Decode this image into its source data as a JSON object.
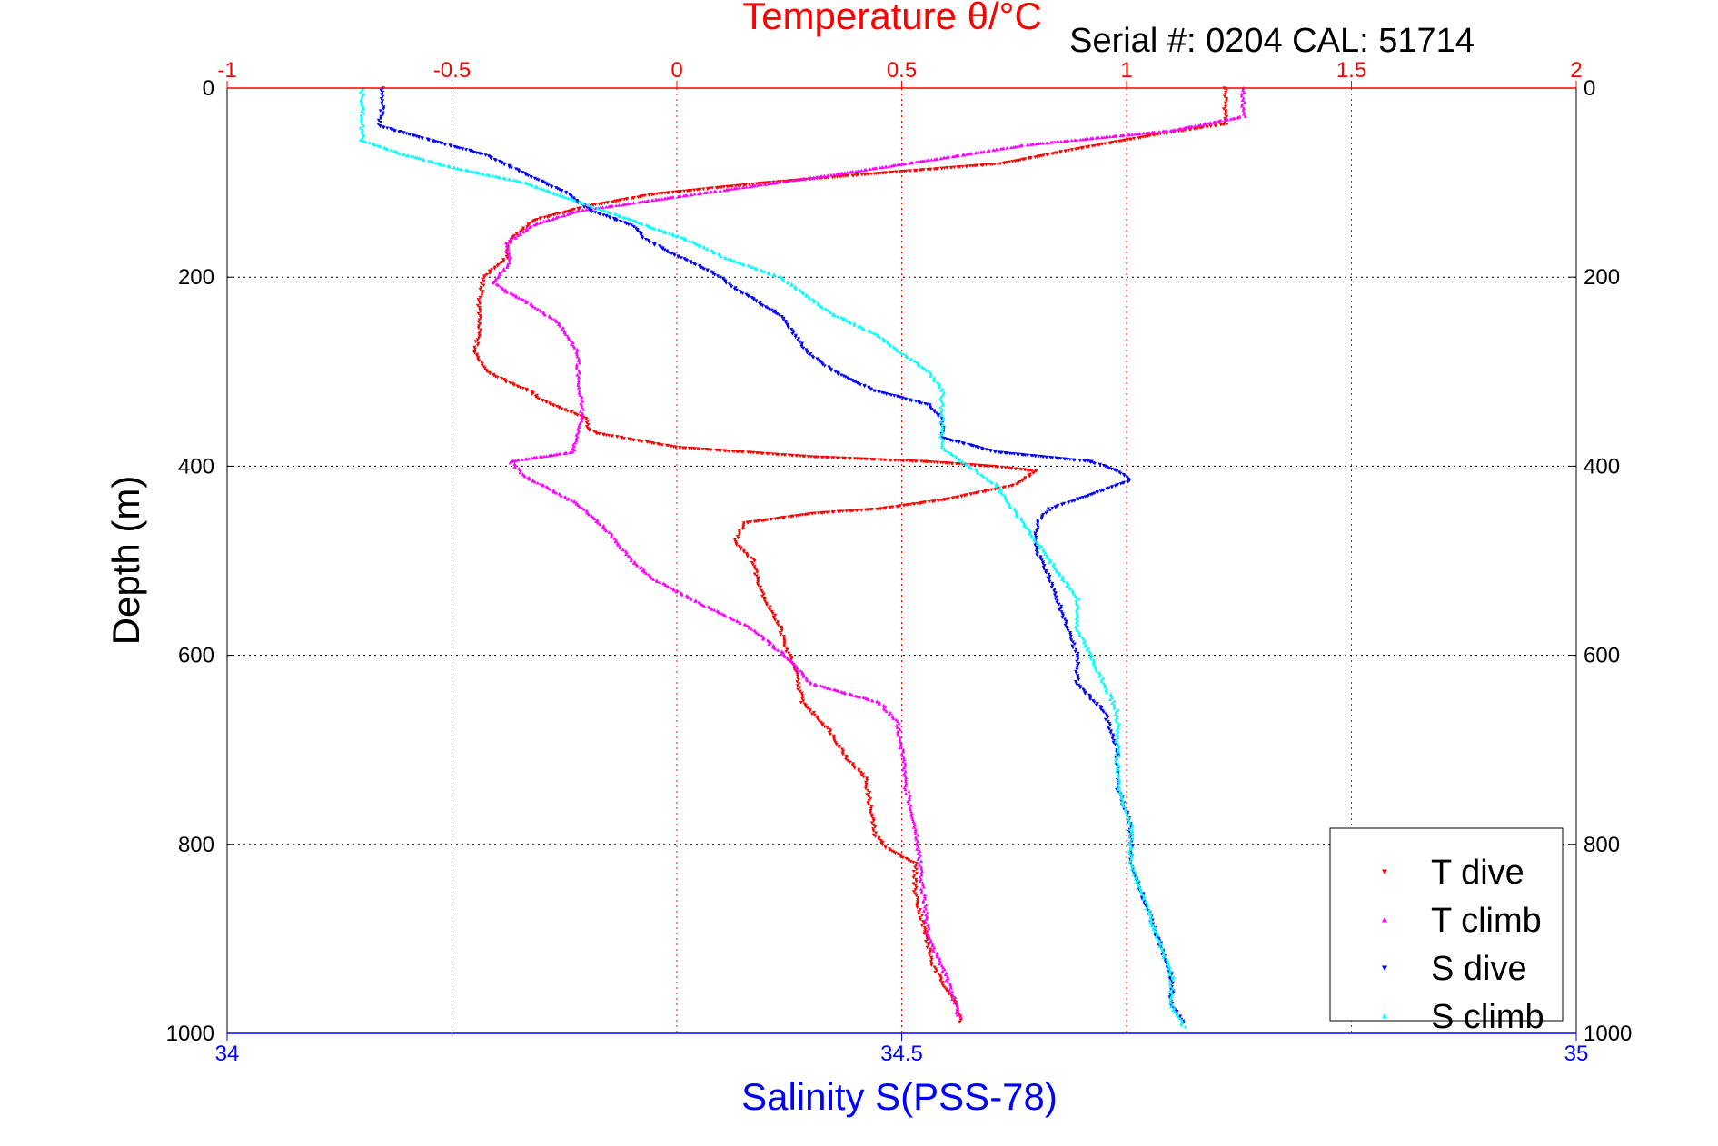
{
  "chart_data": {
    "type": "scatter",
    "title": "Temperature θ/°C",
    "annotation": "Serial #: 0204  CAL: 51714",
    "ylabel": "Depth (m)",
    "xlabel_bottom": "Salinity S(PSS-78)",
    "xlabel_top": "Temperature θ/°C",
    "ylim": [
      1000,
      0
    ],
    "y_reversed": true,
    "top_axis": {
      "range": [
        -1,
        2
      ],
      "ticks": [
        -1,
        -0.5,
        0,
        0.5,
        1,
        1.5,
        2
      ],
      "tick_labels": [
        "-1",
        "-0.5",
        "0",
        "0.5",
        "1",
        "1.5",
        "2"
      ],
      "color": "#ff0000",
      "grid": true
    },
    "bottom_axis": {
      "range": [
        34,
        35
      ],
      "ticks": [
        34,
        34.5,
        35
      ],
      "tick_labels": [
        "34",
        "34.5",
        "35"
      ],
      "color": "#0000ff"
    },
    "left_axis": {
      "ticks": [
        0,
        200,
        400,
        600,
        800,
        1000
      ],
      "tick_labels": [
        "0",
        "200",
        "400",
        "600",
        "800",
        "1000"
      ],
      "grid": true
    },
    "right_axis": {
      "ticks": [
        0,
        200,
        400,
        600,
        800,
        1000
      ],
      "tick_labels": [
        "0",
        "200",
        "400",
        "600",
        "800",
        "1000"
      ]
    },
    "legend": {
      "placement": "bottom-right",
      "entries": [
        "T dive",
        "T climb",
        "S dive",
        "S climb"
      ]
    },
    "series": [
      {
        "name": "T dive",
        "axis": "temperature",
        "color": "#ff0000",
        "marker": "triangle-down",
        "points": [
          [
            1.22,
            0
          ],
          [
            1.22,
            20
          ],
          [
            1.22,
            38
          ],
          [
            1.08,
            48
          ],
          [
            0.88,
            65
          ],
          [
            0.72,
            80
          ],
          [
            0.45,
            90
          ],
          [
            0.2,
            100
          ],
          [
            -0.05,
            112
          ],
          [
            -0.2,
            125
          ],
          [
            -0.32,
            140
          ],
          [
            -0.37,
            160
          ],
          [
            -0.38,
            180
          ],
          [
            -0.43,
            200
          ],
          [
            -0.44,
            230
          ],
          [
            -0.44,
            260
          ],
          [
            -0.45,
            280
          ],
          [
            -0.42,
            300
          ],
          [
            -0.38,
            310
          ],
          [
            -0.33,
            320
          ],
          [
            -0.3,
            330
          ],
          [
            -0.25,
            340
          ],
          [
            -0.2,
            350
          ],
          [
            -0.2,
            360
          ],
          [
            -0.18,
            365
          ],
          [
            0.0,
            380
          ],
          [
            0.3,
            390
          ],
          [
            0.55,
            395
          ],
          [
            0.7,
            400
          ],
          [
            0.8,
            405
          ],
          [
            0.75,
            420
          ],
          [
            0.6,
            435
          ],
          [
            0.45,
            445
          ],
          [
            0.3,
            450
          ],
          [
            0.15,
            460
          ],
          [
            0.13,
            480
          ],
          [
            0.17,
            500
          ],
          [
            0.18,
            520
          ],
          [
            0.2,
            545
          ],
          [
            0.23,
            570
          ],
          [
            0.24,
            590
          ],
          [
            0.26,
            610
          ],
          [
            0.27,
            630
          ],
          [
            0.28,
            650
          ],
          [
            0.34,
            680
          ],
          [
            0.38,
            710
          ],
          [
            0.42,
            730
          ],
          [
            0.43,
            760
          ],
          [
            0.44,
            790
          ],
          [
            0.47,
            805
          ],
          [
            0.53,
            820
          ],
          [
            0.53,
            850
          ],
          [
            0.55,
            890
          ],
          [
            0.57,
            930
          ],
          [
            0.61,
            960
          ],
          [
            0.63,
            980
          ],
          [
            0.63,
            990
          ]
        ]
      },
      {
        "name": "T climb",
        "axis": "temperature",
        "color": "#ff00ff",
        "marker": "triangle-up",
        "points": [
          [
            1.26,
            0
          ],
          [
            1.26,
            15
          ],
          [
            1.26,
            30
          ],
          [
            1.1,
            45
          ],
          [
            0.78,
            60
          ],
          [
            0.58,
            75
          ],
          [
            0.3,
            95
          ],
          [
            0.0,
            115
          ],
          [
            -0.22,
            130
          ],
          [
            -0.32,
            145
          ],
          [
            -0.38,
            165
          ],
          [
            -0.37,
            185
          ],
          [
            -0.41,
            205
          ],
          [
            -0.38,
            215
          ],
          [
            -0.32,
            230
          ],
          [
            -0.26,
            250
          ],
          [
            -0.22,
            280
          ],
          [
            -0.22,
            310
          ],
          [
            -0.21,
            340
          ],
          [
            -0.22,
            365
          ],
          [
            -0.23,
            385
          ],
          [
            -0.37,
            395
          ],
          [
            -0.34,
            410
          ],
          [
            -0.22,
            440
          ],
          [
            -0.15,
            470
          ],
          [
            -0.1,
            500
          ],
          [
            -0.05,
            520
          ],
          [
            0.05,
            545
          ],
          [
            0.16,
            570
          ],
          [
            0.24,
            600
          ],
          [
            0.3,
            630
          ],
          [
            0.45,
            650
          ],
          [
            0.49,
            670
          ],
          [
            0.5,
            700
          ],
          [
            0.51,
            740
          ],
          [
            0.53,
            780
          ],
          [
            0.54,
            820
          ],
          [
            0.55,
            860
          ],
          [
            0.56,
            900
          ],
          [
            0.6,
            940
          ],
          [
            0.62,
            970
          ],
          [
            0.63,
            985
          ]
        ]
      },
      {
        "name": "S dive",
        "axis": "salinity",
        "color": "#0000ff",
        "marker": "triangle-down",
        "points": [
          [
            34.115,
            0
          ],
          [
            34.115,
            20
          ],
          [
            34.113,
            40
          ],
          [
            34.15,
            55
          ],
          [
            34.19,
            70
          ],
          [
            34.22,
            90
          ],
          [
            34.25,
            110
          ],
          [
            34.27,
            130
          ],
          [
            34.3,
            145
          ],
          [
            34.31,
            160
          ],
          [
            34.33,
            175
          ],
          [
            34.36,
            195
          ],
          [
            34.38,
            215
          ],
          [
            34.41,
            240
          ],
          [
            34.42,
            260
          ],
          [
            34.43,
            280
          ],
          [
            34.45,
            300
          ],
          [
            34.48,
            320
          ],
          [
            34.52,
            335
          ],
          [
            34.53,
            350
          ],
          [
            34.53,
            370
          ],
          [
            34.57,
            385
          ],
          [
            34.64,
            395
          ],
          [
            34.66,
            405
          ],
          [
            34.67,
            415
          ],
          [
            34.64,
            430
          ],
          [
            34.61,
            445
          ],
          [
            34.6,
            460
          ],
          [
            34.6,
            490
          ],
          [
            34.61,
            520
          ],
          [
            34.62,
            560
          ],
          [
            34.63,
            600
          ],
          [
            34.63,
            630
          ],
          [
            34.65,
            660
          ],
          [
            34.66,
            700
          ],
          [
            34.66,
            740
          ],
          [
            34.67,
            780
          ],
          [
            34.67,
            820
          ],
          [
            34.68,
            860
          ],
          [
            34.69,
            900
          ],
          [
            34.7,
            940
          ],
          [
            34.7,
            970
          ],
          [
            34.71,
            990
          ]
        ]
      },
      {
        "name": "S climb",
        "axis": "salinity",
        "color": "#00ffff",
        "marker": "triangle-up",
        "points": [
          [
            34.1,
            0
          ],
          [
            34.1,
            20
          ],
          [
            34.1,
            40
          ],
          [
            34.1,
            55
          ],
          [
            34.13,
            70
          ],
          [
            34.17,
            85
          ],
          [
            34.22,
            100
          ],
          [
            34.26,
            120
          ],
          [
            34.3,
            140
          ],
          [
            34.34,
            160
          ],
          [
            34.37,
            180
          ],
          [
            34.41,
            200
          ],
          [
            34.43,
            220
          ],
          [
            34.45,
            240
          ],
          [
            34.48,
            260
          ],
          [
            34.5,
            280
          ],
          [
            34.52,
            300
          ],
          [
            34.53,
            320
          ],
          [
            34.53,
            340
          ],
          [
            34.53,
            360
          ],
          [
            34.53,
            380
          ],
          [
            34.55,
            400
          ],
          [
            34.57,
            420
          ],
          [
            34.58,
            440
          ],
          [
            34.59,
            460
          ],
          [
            34.6,
            480
          ],
          [
            34.61,
            500
          ],
          [
            34.62,
            520
          ],
          [
            34.63,
            540
          ],
          [
            34.63,
            570
          ],
          [
            34.64,
            600
          ],
          [
            34.65,
            630
          ],
          [
            34.66,
            660
          ],
          [
            34.66,
            700
          ],
          [
            34.66,
            740
          ],
          [
            34.67,
            780
          ],
          [
            34.67,
            820
          ],
          [
            34.68,
            860
          ],
          [
            34.69,
            900
          ],
          [
            34.7,
            940
          ],
          [
            34.7,
            970
          ],
          [
            34.71,
            995
          ]
        ]
      }
    ]
  }
}
